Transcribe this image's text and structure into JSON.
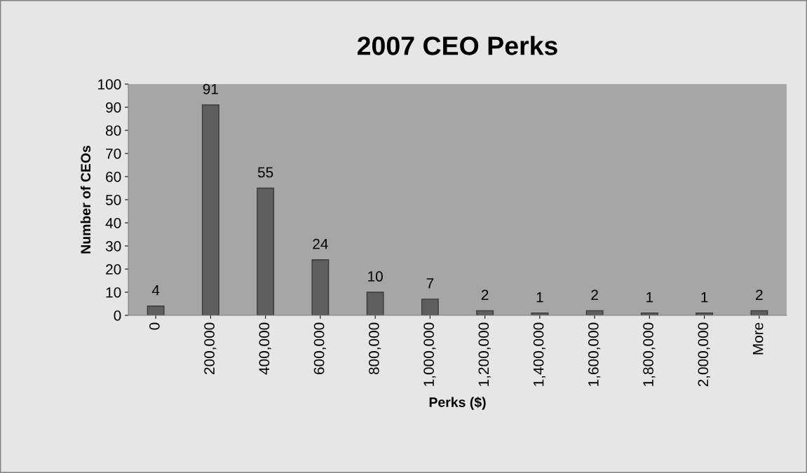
{
  "chart_data": {
    "type": "bar",
    "title": "2007 CEO Perks",
    "xlabel": "Perks ($)",
    "ylabel": "Number of CEOs",
    "categories": [
      "0",
      "200,000",
      "400,000",
      "600,000",
      "800,000",
      "1,000,000",
      "1,200,000",
      "1,400,000",
      "1,600,000",
      "1,800,000",
      "2,000,000",
      "More"
    ],
    "values": [
      4,
      91,
      55,
      24,
      10,
      7,
      2,
      1,
      2,
      1,
      1,
      2
    ],
    "color": "#5e5e5e",
    "ylim": [
      0,
      100
    ],
    "yticks": [
      0,
      10,
      20,
      30,
      40,
      50,
      60,
      70,
      80,
      90,
      100
    ],
    "data_labels": true,
    "grid": false,
    "legend": false
  }
}
